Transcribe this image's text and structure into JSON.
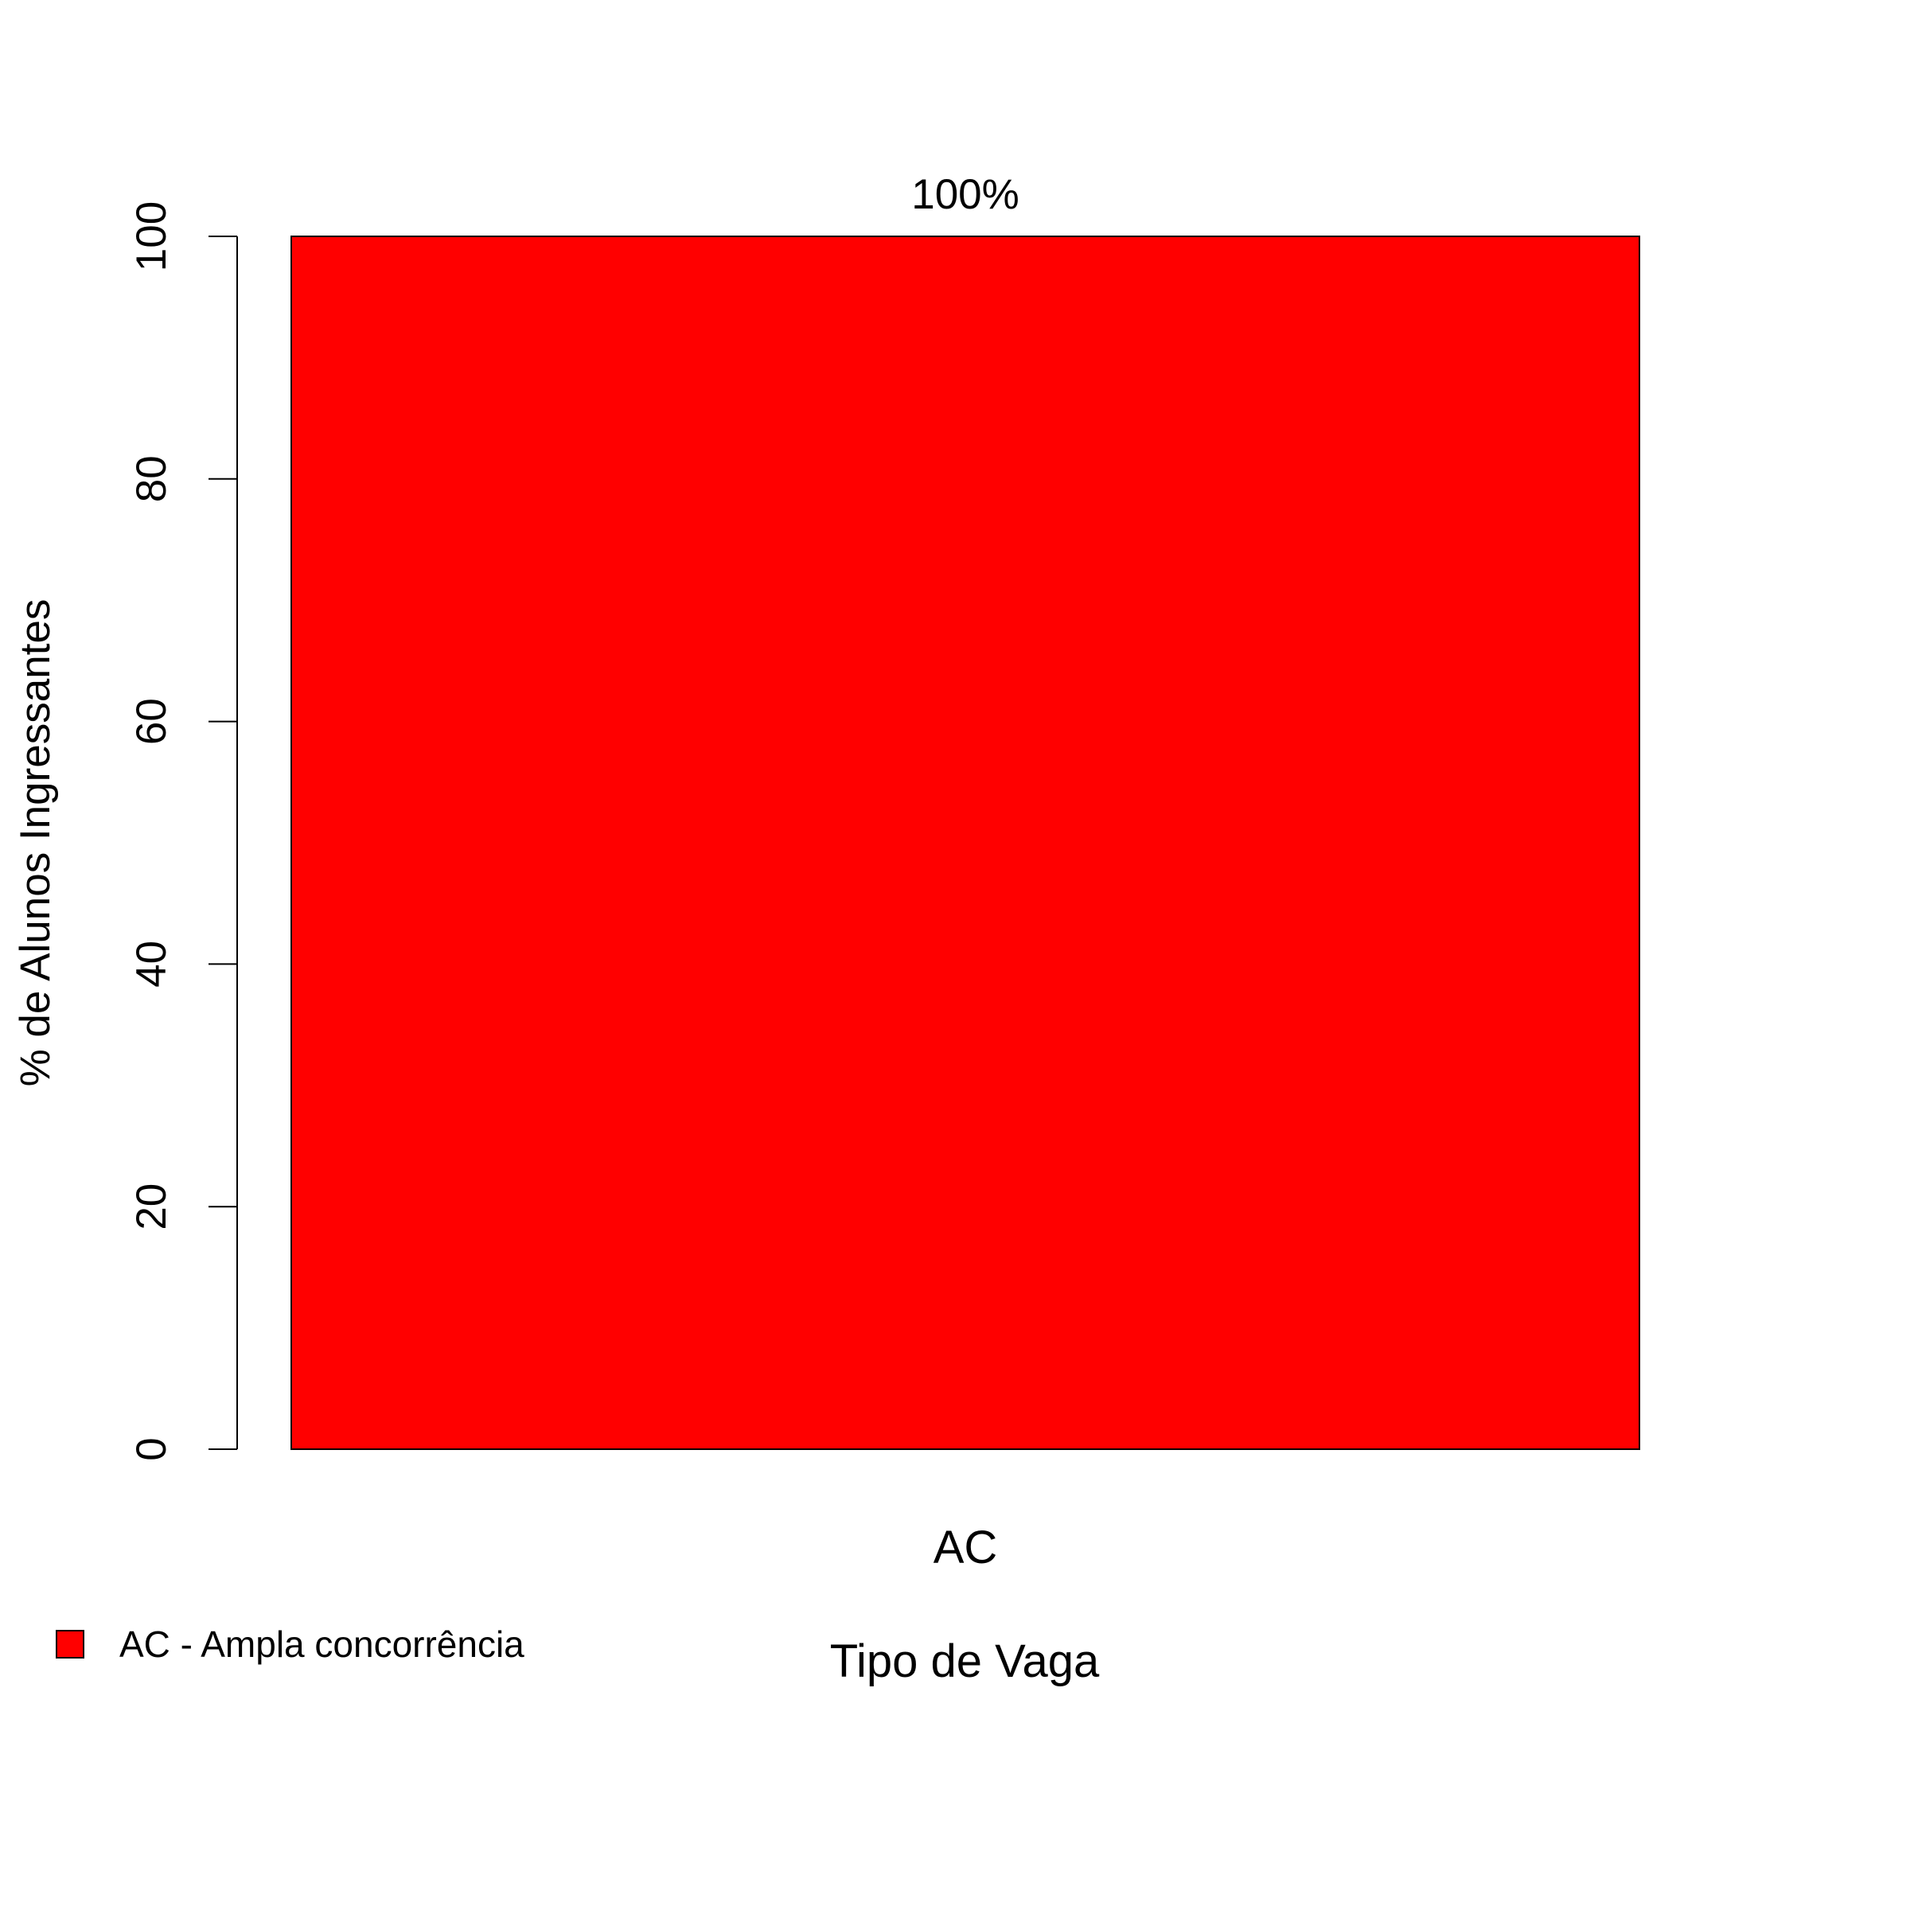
{
  "chart_data": {
    "type": "bar",
    "categories": [
      "AC"
    ],
    "values": [
      100
    ],
    "data_labels": [
      "100%"
    ],
    "xlabel": "Tipo de Vaga",
    "ylabel": "% de Alunos Ingressantes",
    "ylim": [
      0,
      100
    ],
    "yticks": [
      0,
      20,
      40,
      60,
      80,
      100
    ],
    "grid": false,
    "bar_colors": [
      "#ff0000"
    ],
    "legend": {
      "position": "bottom-left",
      "entries": [
        {
          "label": "AC - Ampla concorrência",
          "color": "#ff0000"
        }
      ]
    }
  }
}
